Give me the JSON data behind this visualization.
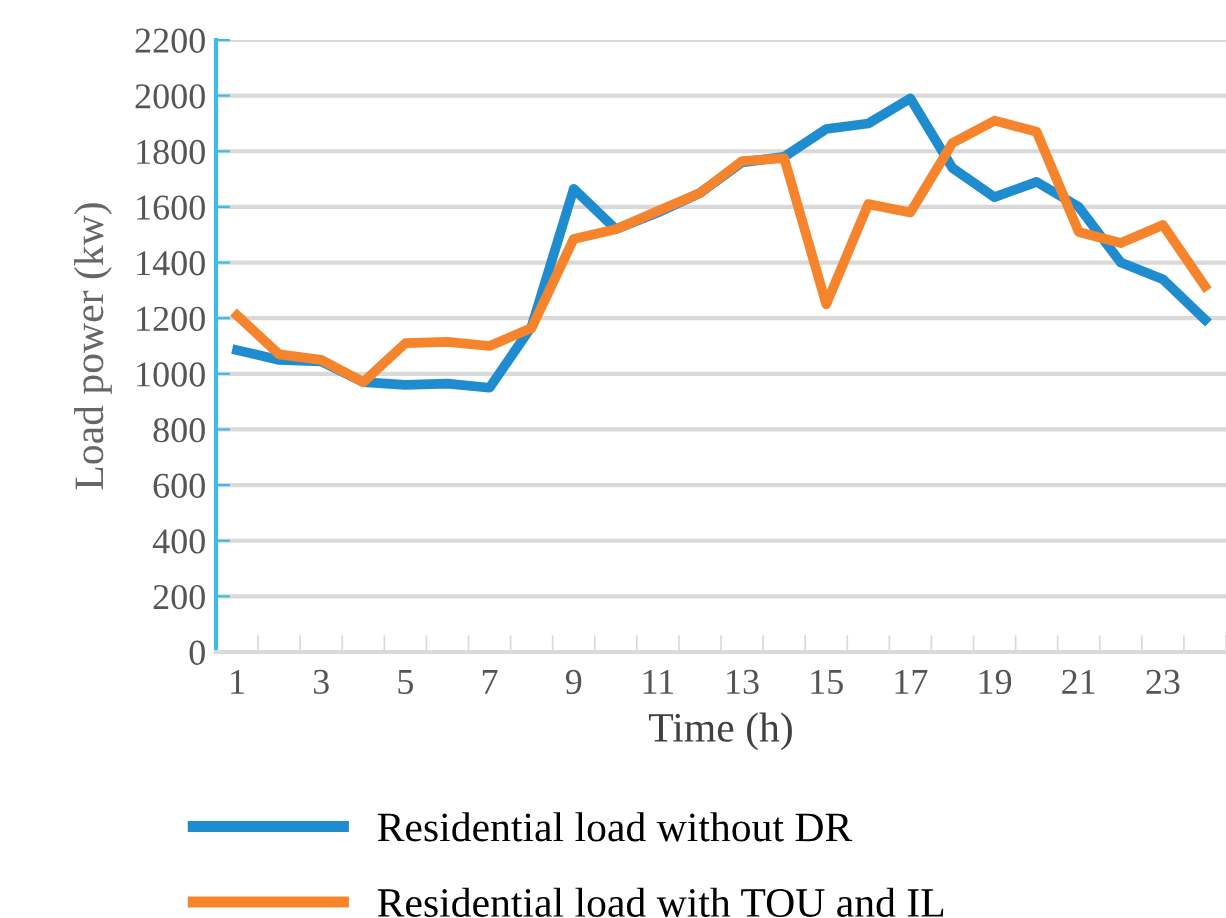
{
  "chart_data": {
    "type": "line",
    "xlabel": "Time (h)",
    "ylabel": "Load power (kw)",
    "categories": [
      "1",
      null,
      "3",
      null,
      "5",
      null,
      "7",
      null,
      "9",
      null,
      "11",
      null,
      "13",
      null,
      "15",
      null,
      "17",
      null,
      "19",
      null,
      "21",
      null,
      "23",
      null
    ],
    "ylim": [
      0,
      2200
    ],
    "yticks": [
      0,
      200,
      400,
      600,
      800,
      1000,
      1200,
      1400,
      1600,
      1800,
      2000,
      2200
    ],
    "grid": "y",
    "legend": "bottom",
    "marker": "none",
    "line_style": "solid",
    "series": [
      {
        "name": "Residential load without DR",
        "color": "#1f8ccf",
        "values": [
          1085,
          1050,
          1045,
          970,
          960,
          965,
          950,
          1170,
          1665,
          1520,
          1580,
          1650,
          1760,
          1780,
          1880,
          1900,
          1990,
          1740,
          1635,
          1690,
          1600,
          1400,
          1340,
          1195
        ]
      },
      {
        "name": "Residential load with TOU and IL",
        "color": "#f5842c",
        "values": [
          1210,
          1070,
          1050,
          970,
          1110,
          1115,
          1100,
          1165,
          1485,
          1520,
          1585,
          1650,
          1765,
          1775,
          1250,
          1610,
          1580,
          1830,
          1910,
          1870,
          1510,
          1470,
          1535,
          1315
        ]
      }
    ]
  }
}
